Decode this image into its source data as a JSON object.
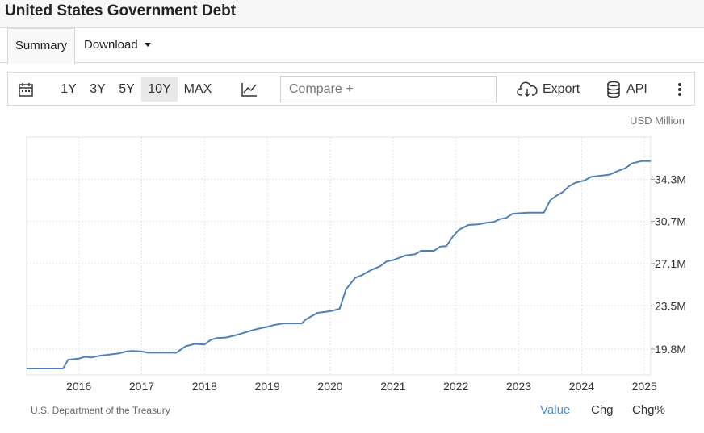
{
  "page": {
    "title": "United States Government Debt"
  },
  "tabs": {
    "summary": "Summary",
    "download": "Download"
  },
  "toolbar": {
    "ranges": [
      "1Y",
      "3Y",
      "5Y",
      "10Y",
      "MAX"
    ],
    "active_range": "10Y",
    "compare_placeholder": "Compare +",
    "export_label": "Export",
    "api_label": "API",
    "icons": [
      "calendar-icon",
      "line-chart-icon",
      "cloud-download-icon",
      "database-icon",
      "more-vertical-icon"
    ]
  },
  "footer": {
    "source": "U.S. Department of the Treasury",
    "modes": [
      "Value",
      "Chg",
      "Chg%"
    ],
    "active_mode": "Value"
  },
  "colors": {
    "line": "#4e80b9",
    "accent": "#4e8ec7"
  },
  "chart_data": {
    "type": "line",
    "title": "United States Government Debt",
    "unit_label": "USD Million",
    "x_ticks": [
      "2016",
      "2017",
      "2018",
      "2019",
      "2020",
      "2021",
      "2022",
      "2023",
      "2024",
      "2025"
    ],
    "y_ticks": [
      "19.8M",
      "23.5M",
      "27.1M",
      "30.7M",
      "34.3M"
    ],
    "y_tick_values": [
      19.8,
      23.5,
      27.1,
      30.7,
      34.3
    ],
    "ylim": [
      17.6,
      37.9
    ],
    "xlim": [
      2015.17,
      2025.1
    ],
    "grid": true,
    "y_axis_side": "right",
    "series": [
      {
        "points": [
          [
            2015.17,
            18.15
          ],
          [
            2015.42,
            18.15
          ],
          [
            2015.75,
            18.15
          ],
          [
            2015.83,
            18.9
          ],
          [
            2016.0,
            19.0
          ],
          [
            2016.1,
            19.15
          ],
          [
            2016.2,
            19.1
          ],
          [
            2016.35,
            19.25
          ],
          [
            2016.5,
            19.35
          ],
          [
            2016.65,
            19.45
          ],
          [
            2016.75,
            19.6
          ],
          [
            2016.85,
            19.65
          ],
          [
            2017.0,
            19.6
          ],
          [
            2017.1,
            19.5
          ],
          [
            2017.25,
            19.5
          ],
          [
            2017.4,
            19.5
          ],
          [
            2017.55,
            19.5
          ],
          [
            2017.7,
            20.05
          ],
          [
            2017.85,
            20.25
          ],
          [
            2018.0,
            20.2
          ],
          [
            2018.1,
            20.6
          ],
          [
            2018.2,
            20.75
          ],
          [
            2018.35,
            20.8
          ],
          [
            2018.5,
            21.0
          ],
          [
            2018.6,
            21.15
          ],
          [
            2018.75,
            21.4
          ],
          [
            2018.9,
            21.6
          ],
          [
            2019.0,
            21.7
          ],
          [
            2019.1,
            21.85
          ],
          [
            2019.25,
            22.0
          ],
          [
            2019.4,
            22.0
          ],
          [
            2019.55,
            22.0
          ],
          [
            2019.6,
            22.3
          ],
          [
            2019.7,
            22.6
          ],
          [
            2019.8,
            22.9
          ],
          [
            2019.95,
            23.0
          ],
          [
            2020.05,
            23.1
          ],
          [
            2020.15,
            23.25
          ],
          [
            2020.25,
            24.9
          ],
          [
            2020.4,
            25.9
          ],
          [
            2020.5,
            26.1
          ],
          [
            2020.65,
            26.55
          ],
          [
            2020.8,
            26.9
          ],
          [
            2020.9,
            27.3
          ],
          [
            2021.0,
            27.4
          ],
          [
            2021.1,
            27.6
          ],
          [
            2021.2,
            27.8
          ],
          [
            2021.35,
            27.9
          ],
          [
            2021.45,
            28.2
          ],
          [
            2021.55,
            28.2
          ],
          [
            2021.65,
            28.2
          ],
          [
            2021.75,
            28.55
          ],
          [
            2021.85,
            28.6
          ],
          [
            2021.95,
            29.4
          ],
          [
            2022.05,
            30.0
          ],
          [
            2022.2,
            30.4
          ],
          [
            2022.35,
            30.45
          ],
          [
            2022.5,
            30.6
          ],
          [
            2022.6,
            30.65
          ],
          [
            2022.7,
            30.9
          ],
          [
            2022.8,
            31.0
          ],
          [
            2022.9,
            31.35
          ],
          [
            2023.0,
            31.4
          ],
          [
            2023.15,
            31.45
          ],
          [
            2023.3,
            31.45
          ],
          [
            2023.4,
            31.45
          ],
          [
            2023.5,
            32.5
          ],
          [
            2023.6,
            32.9
          ],
          [
            2023.7,
            33.2
          ],
          [
            2023.8,
            33.7
          ],
          [
            2023.9,
            34.0
          ],
          [
            2024.05,
            34.2
          ],
          [
            2024.15,
            34.5
          ],
          [
            2024.3,
            34.6
          ],
          [
            2024.45,
            34.7
          ],
          [
            2024.55,
            34.95
          ],
          [
            2024.7,
            35.25
          ],
          [
            2024.8,
            35.65
          ],
          [
            2024.95,
            35.85
          ],
          [
            2025.1,
            35.85
          ]
        ]
      }
    ]
  }
}
